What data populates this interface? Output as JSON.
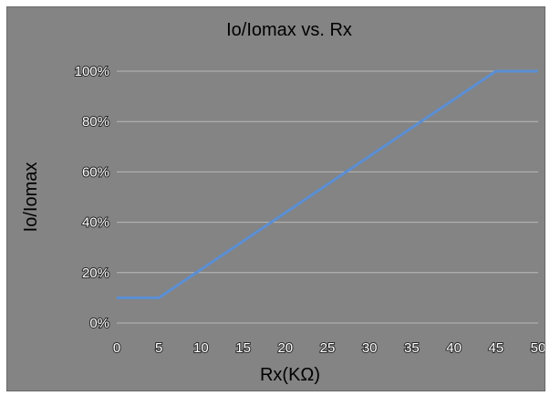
{
  "chart_data": {
    "type": "line",
    "title": "Io/Iomax vs. Rx",
    "xlabel": "Rx(KΩ)",
    "ylabel": "Io/Iomax",
    "x_ticks": [
      "0",
      "5",
      "10",
      "15",
      "20",
      "25",
      "30",
      "35",
      "40",
      "45",
      "50"
    ],
    "y_ticks": [
      "0%",
      "20%",
      "40%",
      "60%",
      "80%",
      "100%"
    ],
    "xlim": [
      0,
      50
    ],
    "ylim": [
      0,
      100
    ],
    "grid": true,
    "series": [
      {
        "color": "#5b8fd4",
        "x": [
          0,
          5,
          45,
          50
        ],
        "y": [
          10,
          10,
          100,
          100
        ]
      }
    ]
  }
}
